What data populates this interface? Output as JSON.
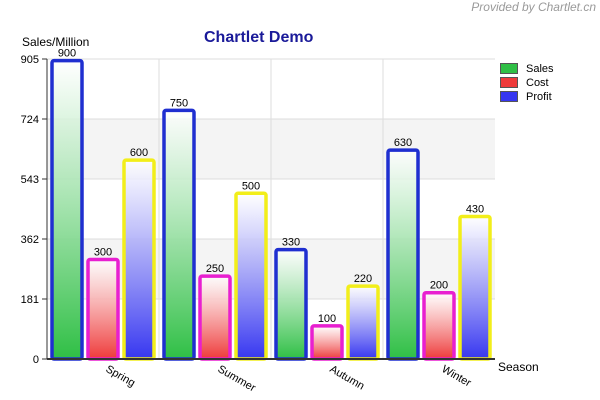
{
  "credit": "Provided by Chartlet.cn",
  "chart_data": {
    "type": "bar",
    "title": "Chartlet Demo",
    "ylabel": "Sales/Million",
    "xlabel": "Season",
    "categories": [
      "Spring",
      "Summer",
      "Autumn",
      "Winter"
    ],
    "series": [
      {
        "name": "Sales",
        "values": [
          900,
          750,
          330,
          630
        ],
        "color": "#2fbf45"
      },
      {
        "name": "Cost",
        "values": [
          300,
          250,
          100,
          200
        ],
        "color": "#ee3a3a"
      },
      {
        "name": "Profit",
        "values": [
          600,
          500,
          220,
          430
        ],
        "color": "#3636f0"
      }
    ],
    "yticks": [
      0,
      181,
      362,
      543,
      724,
      905
    ],
    "ylim": [
      0,
      905
    ],
    "grid": true,
    "legend_position": "right-top",
    "bar_border_colors": {
      "high": "#1f2fd0",
      "mid": "#e81fd0",
      "low": "#f2ee1a"
    }
  }
}
